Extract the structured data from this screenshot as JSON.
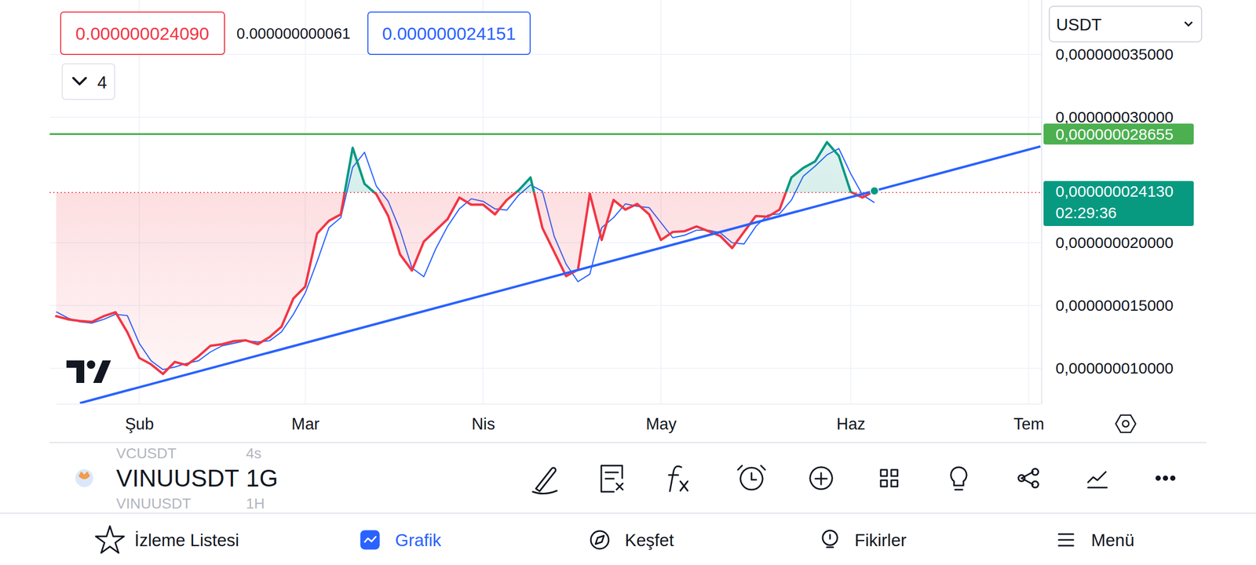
{
  "header": {
    "sell_price": "0.000000024090",
    "spread": "0.000000000061",
    "buy_price": "0.000000024151",
    "indicator_count": "4",
    "currency": "USDT"
  },
  "chart_data": {
    "type": "line",
    "categories": [
      null,
      null,
      null,
      null,
      null,
      null,
      null,
      "Şub",
      null,
      null,
      null,
      null,
      null,
      null,
      null,
      null,
      null,
      null,
      null,
      null,
      null,
      "Mar",
      null,
      null,
      null,
      null,
      null,
      null,
      null,
      null,
      null,
      null,
      null,
      null,
      null,
      null,
      "Nis",
      null,
      null,
      null,
      null,
      null,
      null,
      null,
      null,
      null,
      null,
      null,
      null,
      null,
      null,
      "May",
      null,
      null,
      null,
      null,
      null,
      null,
      null,
      null,
      null,
      null,
      null,
      null,
      null,
      null,
      null,
      "Haz",
      null,
      null,
      null,
      null,
      null,
      null,
      null,
      null,
      null,
      null,
      null,
      null,
      null,
      null,
      "Tem",
      null
    ],
    "series": [
      {
        "type": "baseline",
        "colors": [
          "#089981",
          "#f23645"
        ],
        "values": [
          1.415e-08,
          1.39e-08,
          1.377e-08,
          1.37e-08,
          1.415e-08,
          1.447e-08,
          1.287e-08,
          1.083e-08,
          1.032e-08,
          9.55e-09,
          1.051e-08,
          1.026e-08,
          1.096e-08,
          1.179e-08,
          1.192e-08,
          1.217e-08,
          1.223e-08,
          1.192e-08,
          1.249e-08,
          1.332e-08,
          1.556e-08,
          1.651e-08,
          2.073e-08,
          2.175e-08,
          2.226e-08,
          2.756e-08,
          2.469e-08,
          2.386e-08,
          2.213e-08,
          1.907e-08,
          1.779e-08,
          2.009e-08,
          2.098e-08,
          2.188e-08,
          2.36e-08,
          2.303e-08,
          2.303e-08,
          2.226e-08,
          2.341e-08,
          2.418e-08,
          2.52e-08,
          2.118e-08,
          1.926e-08,
          1.734e-08,
          1.785e-08,
          2.39e-08,
          2.022e-08,
          2.341e-08,
          2.264e-08,
          2.309e-08,
          2.226e-08,
          2.022e-08,
          2.086e-08,
          2.092e-08,
          2.13e-08,
          2.092e-08,
          2.054e-08,
          1.958e-08,
          2.086e-08,
          2.213e-08,
          2.207e-08,
          2.264e-08,
          2.52e-08,
          2.596e-08,
          2.648e-08,
          2.801e-08,
          2.692e-08,
          2.405e-08,
          2.36e-08,
          2.413e-08,
          null,
          null,
          null,
          null,
          null,
          null,
          null,
          null,
          null,
          null,
          null,
          null,
          null,
          null
        ]
      },
      {
        "type": "line",
        "color": "#2962ff",
        "values": [
          1.45e-08,
          1.4e-08,
          1.37e-08,
          1.36e-08,
          1.39e-08,
          1.43e-08,
          1.42e-08,
          1.2e-08,
          1.06e-08,
          9.9e-09,
          1.01e-08,
          1.04e-08,
          1.06e-08,
          1.13e-08,
          1.18e-08,
          1.2e-08,
          1.22e-08,
          1.21e-08,
          1.22e-08,
          1.29e-08,
          1.43e-08,
          1.6e-08,
          1.85e-08,
          2.12e-08,
          2.2e-08,
          2.6e-08,
          2.72e-08,
          2.45e-08,
          2.33e-08,
          2.1e-08,
          1.8e-08,
          1.73e-08,
          1.95e-08,
          2.13e-08,
          2.27e-08,
          2.35e-08,
          2.33e-08,
          2.27e-08,
          2.26e-08,
          2.38e-08,
          2.46e-08,
          2.41e-08,
          2.05e-08,
          1.83e-08,
          1.69e-08,
          1.75e-08,
          2.12e-08,
          2.2e-08,
          2.31e-08,
          2.29e-08,
          2.28e-08,
          2.16e-08,
          2.04e-08,
          2.06e-08,
          2.1e-08,
          2.1e-08,
          2.08e-08,
          2e-08,
          1.99e-08,
          2.13e-08,
          2.22e-08,
          2.23e-08,
          2.34e-08,
          2.53e-08,
          2.61e-08,
          2.7e-08,
          2.75e-08,
          2.55e-08,
          2.38e-08,
          2.32e-08,
          null,
          null,
          null,
          null,
          null,
          null,
          null,
          null,
          null,
          null,
          null,
          null,
          null,
          null
        ]
      }
    ],
    "baseline": 2.4e-08,
    "ylim": [
      7.17e-09,
      3.933e-08
    ],
    "yticks": [
      {
        "value": 3.5e-08,
        "label": "0,000000035000"
      },
      {
        "value": 3e-08,
        "label": "0,000000030000"
      },
      {
        "value": 2e-08,
        "label": "0,000000020000"
      },
      {
        "value": 1.5e-08,
        "label": "0,000000015000"
      },
      {
        "value": 1e-08,
        "label": "0,000000010000"
      }
    ],
    "grid": true,
    "reference_lines": [
      {
        "value": 2.8655e-08,
        "label": "0,000000028655",
        "color": "#4caf50"
      }
    ],
    "trend_line": {
      "positions": [
        2,
        83
      ],
      "values": [
        7.23e-09,
        2.767e-08
      ],
      "color": "#2962ff"
    },
    "last_price": {
      "value": 2.413e-08,
      "label": "0,000000024130",
      "countdown": "02:29:36"
    }
  },
  "toolbar": {
    "symbols": [
      {
        "symbol": "VCUSDT",
        "interval": "4s"
      },
      {
        "symbol": "VINUUSDT",
        "interval": "1G"
      },
      {
        "symbol": "VINUUSDT",
        "interval": "1H"
      }
    ]
  },
  "nav": [
    {
      "label": "İzleme Listesi",
      "active": false
    },
    {
      "label": "Grafik",
      "active": true
    },
    {
      "label": "Keşfet",
      "active": false
    },
    {
      "label": "Fikirler",
      "active": false
    },
    {
      "label": "Menü",
      "active": false
    }
  ]
}
